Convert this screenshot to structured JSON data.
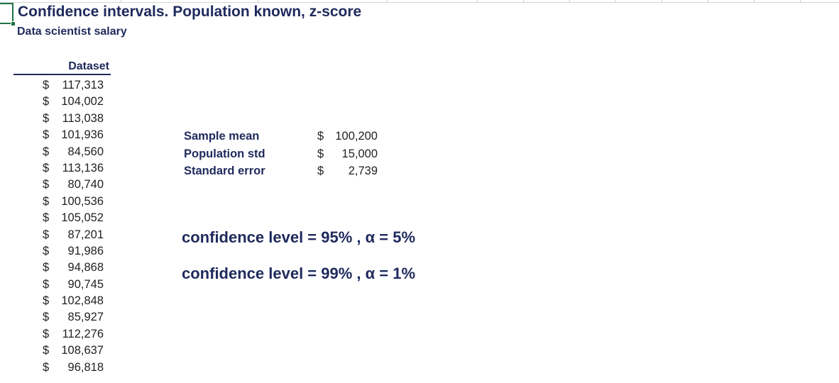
{
  "sheet": {
    "title": "Confidence intervals. Population known, z-score",
    "subtitle": "Data scientist salary"
  },
  "dataset": {
    "header": "Dataset",
    "rows": [
      {
        "cur": "$",
        "num": "117,313"
      },
      {
        "cur": "$",
        "num": "104,002"
      },
      {
        "cur": "$",
        "num": "113,038"
      },
      {
        "cur": "$",
        "num": "101,936"
      },
      {
        "cur": "$",
        "num": "84,560"
      },
      {
        "cur": "$",
        "num": "113,136"
      },
      {
        "cur": "$",
        "num": "80,740"
      },
      {
        "cur": "$",
        "num": "100,536"
      },
      {
        "cur": "$",
        "num": "105,052"
      },
      {
        "cur": "$",
        "num": "87,201"
      },
      {
        "cur": "$",
        "num": "91,986"
      },
      {
        "cur": "$",
        "num": "94,868"
      },
      {
        "cur": "$",
        "num": "90,745"
      },
      {
        "cur": "$",
        "num": "102,848"
      },
      {
        "cur": "$",
        "num": "85,927"
      },
      {
        "cur": "$",
        "num": "112,276"
      },
      {
        "cur": "$",
        "num": "108,637"
      },
      {
        "cur": "$",
        "num": "96,818"
      }
    ]
  },
  "stats": [
    {
      "label": "Sample mean",
      "cur": "$",
      "num": "100,200"
    },
    {
      "label": "Population std",
      "cur": "$",
      "num": "15,000"
    },
    {
      "label": "Standard error",
      "cur": "$",
      "num": "2,739"
    }
  ],
  "confidence": [
    {
      "text": "confidence level = 95% ,  α = 5%"
    },
    {
      "text": "confidence level = 99% ,  α = 1%"
    }
  ],
  "colors": {
    "header_text": "#1f2a5c",
    "selection": "#217346"
  }
}
